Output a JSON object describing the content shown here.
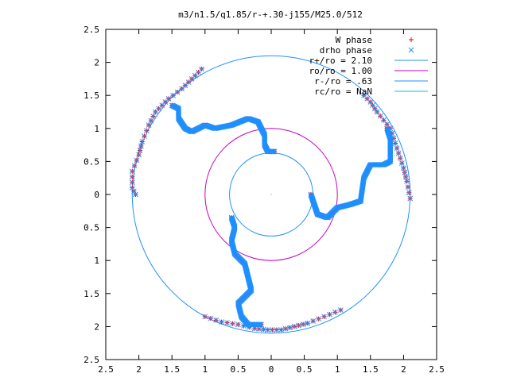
{
  "chart_data": {
    "type": "scatter",
    "title": "m3/n1.5/q1.85/r-+.30-j155/M25.0/512",
    "xlim": [
      2.5,
      -2.5
    ],
    "ylim": [
      -2.5,
      2.5
    ],
    "x_ticks": [
      "2.5",
      "2",
      "1.5",
      "1",
      "0.5",
      "0",
      "0.5",
      "1",
      "1.5",
      "2",
      "2.5"
    ],
    "y_ticks": [
      "2.5",
      "2",
      "1.5",
      "1",
      "0.5",
      "0",
      "0.5",
      "1",
      "1.5",
      "2",
      "2.5"
    ],
    "grid": false,
    "legend_position": "top-right",
    "series": [
      {
        "name": "W phase",
        "marker": "+",
        "color": "#ff0000",
        "arms": [
          [
            [
              0.0,
              0.65
            ],
            [
              -0.05,
              0.65
            ],
            [
              0.05,
              0.65
            ],
            [
              0.1,
              0.75
            ],
            [
              0.1,
              0.9
            ],
            [
              0.2,
              1.1
            ],
            [
              0.35,
              1.15
            ],
            [
              0.6,
              1.05
            ],
            [
              0.85,
              1.0
            ],
            [
              1.0,
              1.05
            ],
            [
              1.2,
              0.95
            ],
            [
              1.3,
              1.0
            ],
            [
              1.4,
              1.15
            ],
            [
              1.4,
              1.3
            ],
            [
              1.5,
              1.35
            ]
          ],
          [
            [
              -0.6,
              0.0
            ],
            [
              -0.7,
              -0.3
            ],
            [
              -0.85,
              -0.35
            ],
            [
              -1.0,
              -0.2
            ],
            [
              -1.2,
              -0.15
            ],
            [
              -1.35,
              -0.1
            ],
            [
              -1.4,
              0.25
            ],
            [
              -1.5,
              0.45
            ],
            [
              -1.7,
              0.45
            ],
            [
              -1.8,
              0.5
            ],
            [
              -1.8,
              0.85
            ],
            [
              -1.75,
              1.0
            ]
          ],
          [
            [
              0.6,
              -0.35
            ],
            [
              0.55,
              -0.5
            ],
            [
              0.6,
              -0.7
            ],
            [
              0.55,
              -0.9
            ],
            [
              0.4,
              -1.05
            ],
            [
              0.35,
              -1.25
            ],
            [
              0.3,
              -1.45
            ],
            [
              0.5,
              -1.65
            ],
            [
              0.45,
              -1.85
            ],
            [
              0.35,
              -1.97
            ],
            [
              0.15,
              -1.97
            ]
          ],
          [
            [
              1.05,
              1.9
            ],
            [
              1.2,
              1.75
            ],
            [
              1.35,
              1.6
            ],
            [
              1.55,
              1.45
            ],
            [
              1.75,
              1.25
            ],
            [
              1.85,
              1.05
            ],
            [
              1.95,
              0.8
            ],
            [
              2.0,
              0.6
            ],
            [
              2.1,
              0.35
            ],
            [
              2.1,
              0.1
            ],
            [
              2.05,
              0.0
            ]
          ],
          [
            [
              -1.4,
              1.5
            ],
            [
              -1.5,
              1.4
            ],
            [
              -1.6,
              1.25
            ],
            [
              -1.8,
              1.0
            ],
            [
              -1.9,
              0.7
            ],
            [
              -2.0,
              0.4
            ],
            [
              -2.05,
              0.2
            ],
            [
              -2.1,
              -0.06
            ]
          ],
          [
            [
              1.0,
              -1.85
            ],
            [
              0.75,
              -1.93
            ],
            [
              0.5,
              -1.97
            ],
            [
              0.25,
              -2.03
            ],
            [
              0.05,
              -2.05
            ],
            [
              -0.15,
              -2.05
            ],
            [
              -0.35,
              -2.0
            ],
            [
              -0.55,
              -1.95
            ],
            [
              -0.8,
              -1.85
            ],
            [
              -1.05,
              -1.75
            ]
          ]
        ]
      },
      {
        "name": "drho phase",
        "marker": "x",
        "color": "#1e90ff",
        "arms": [
          [
            [
              0.0,
              0.65
            ],
            [
              -0.05,
              0.65
            ],
            [
              0.05,
              0.65
            ],
            [
              0.1,
              0.75
            ],
            [
              0.1,
              0.9
            ],
            [
              0.2,
              1.1
            ],
            [
              0.35,
              1.15
            ],
            [
              0.6,
              1.05
            ],
            [
              0.85,
              1.0
            ],
            [
              1.0,
              1.05
            ],
            [
              1.2,
              0.95
            ],
            [
              1.3,
              1.0
            ],
            [
              1.4,
              1.15
            ],
            [
              1.4,
              1.3
            ],
            [
              1.5,
              1.35
            ]
          ],
          [
            [
              -0.6,
              0.0
            ],
            [
              -0.7,
              -0.3
            ],
            [
              -0.85,
              -0.35
            ],
            [
              -1.0,
              -0.2
            ],
            [
              -1.2,
              -0.15
            ],
            [
              -1.35,
              -0.1
            ],
            [
              -1.4,
              0.25
            ],
            [
              -1.5,
              0.45
            ],
            [
              -1.7,
              0.45
            ],
            [
              -1.8,
              0.5
            ],
            [
              -1.8,
              0.85
            ],
            [
              -1.75,
              1.0
            ]
          ],
          [
            [
              0.6,
              -0.35
            ],
            [
              0.55,
              -0.5
            ],
            [
              0.6,
              -0.7
            ],
            [
              0.55,
              -0.9
            ],
            [
              0.4,
              -1.05
            ],
            [
              0.35,
              -1.25
            ],
            [
              0.3,
              -1.45
            ],
            [
              0.5,
              -1.65
            ],
            [
              0.45,
              -1.85
            ],
            [
              0.35,
              -1.97
            ],
            [
              0.15,
              -1.97
            ]
          ],
          [
            [
              1.05,
              1.9
            ],
            [
              1.2,
              1.75
            ],
            [
              1.35,
              1.6
            ],
            [
              1.55,
              1.45
            ],
            [
              1.75,
              1.25
            ],
            [
              1.85,
              1.05
            ],
            [
              1.95,
              0.8
            ],
            [
              2.0,
              0.6
            ],
            [
              2.1,
              0.35
            ],
            [
              2.1,
              0.1
            ],
            [
              2.05,
              0.0
            ]
          ],
          [
            [
              -1.4,
              1.5
            ],
            [
              -1.5,
              1.4
            ],
            [
              -1.6,
              1.25
            ],
            [
              -1.8,
              1.0
            ],
            [
              -1.9,
              0.7
            ],
            [
              -2.0,
              0.4
            ],
            [
              -2.05,
              0.2
            ],
            [
              -2.1,
              -0.06
            ]
          ],
          [
            [
              1.0,
              -1.85
            ],
            [
              0.75,
              -1.93
            ],
            [
              0.5,
              -1.97
            ],
            [
              0.25,
              -2.03
            ],
            [
              0.05,
              -2.05
            ],
            [
              -0.15,
              -2.05
            ],
            [
              -0.35,
              -2.0
            ],
            [
              -0.55,
              -1.95
            ],
            [
              -0.8,
              -1.85
            ],
            [
              -1.05,
              -1.75
            ]
          ]
        ]
      },
      {
        "name": "r+/ro = 2.10",
        "type": "circle",
        "radius": 2.1,
        "color": "#1e90ff"
      },
      {
        "name": "ro/ro = 1.00",
        "type": "circle",
        "radius": 1.0,
        "color": "#c000c0"
      },
      {
        "name": "r-/ro = .63",
        "type": "circle",
        "radius": 0.63,
        "color": "#1e90ff"
      },
      {
        "name": "rc/ro = NaN",
        "type": "circle",
        "radius": null,
        "color": "#00cccc"
      }
    ]
  }
}
